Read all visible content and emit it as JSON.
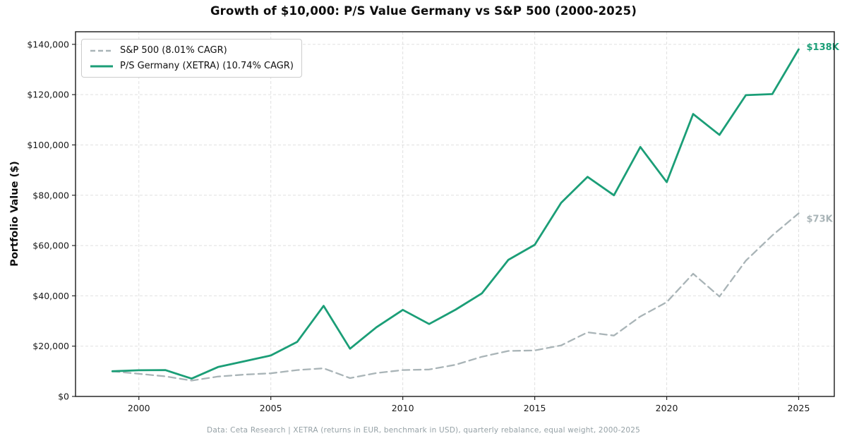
{
  "title": "Growth of $10,000: P/S Value Germany vs S&P 500 (2000-2025)",
  "footer": "Data: Ceta Research | XETRA (returns in EUR, benchmark in USD), quarterly rebalance, equal weight, 2000-2025",
  "colors": {
    "germany_teal": "#1b9e77",
    "sp500_gray": "#a9b4b7",
    "grid": "#e0e0e0"
  },
  "chart_data": {
    "type": "line",
    "title": "Growth of $10,000: P/S Value Germany vs S&P 500 (2000-2025)",
    "xlabel": "",
    "ylabel": "Portfolio Value ($)",
    "grid": true,
    "legend_position": "upper-left",
    "x": [
      1999,
      2000,
      2001,
      2002,
      2003,
      2004,
      2005,
      2006,
      2007,
      2008,
      2009,
      2010,
      2011,
      2012,
      2013,
      2014,
      2015,
      2016,
      2017,
      2018,
      2019,
      2020,
      2021,
      2022,
      2023,
      2024,
      2025
    ],
    "series": [
      {
        "id": "sp500",
        "name": "S&P 500 (8.01% CAGR)",
        "color": "#a9b4b7",
        "style": "dashed",
        "width": 2.3,
        "end_label": "$73K",
        "values": [
          10000,
          9000,
          8000,
          6300,
          7900,
          8700,
          9200,
          10500,
          11200,
          7300,
          9300,
          10500,
          10700,
          12600,
          15800,
          18100,
          18300,
          20300,
          25500,
          24200,
          31800,
          37500,
          48800,
          39700,
          54000,
          64000,
          72800
        ]
      },
      {
        "id": "germany",
        "name": "P/S Germany (XETRA) (10.74% CAGR)",
        "color": "#1b9e77",
        "style": "solid",
        "width": 2.8,
        "end_label": "$138K",
        "values": [
          10000,
          10400,
          10500,
          7100,
          11700,
          14000,
          16300,
          21700,
          36000,
          19000,
          27500,
          34400,
          28800,
          34500,
          41000,
          54300,
          60300,
          77000,
          87300,
          80000,
          99200,
          85200,
          112300,
          104000,
          119800,
          120200,
          138000
        ]
      }
    ],
    "xticks": [
      2000,
      2005,
      2010,
      2015,
      2020,
      2025
    ],
    "yticks": [
      0,
      20000,
      40000,
      60000,
      80000,
      100000,
      120000,
      140000
    ],
    "ytick_labels": [
      "$0",
      "$20,000",
      "$40,000",
      "$60,000",
      "$80,000",
      "$100,000",
      "$120,000",
      "$140,000"
    ],
    "xlim": [
      1997.6,
      2026.35
    ],
    "ylim": [
      0,
      145000
    ]
  }
}
